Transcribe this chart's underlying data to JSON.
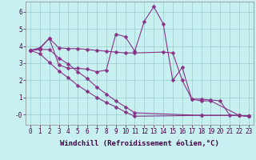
{
  "background_color": "#c8f0f0",
  "line_color": "#883388",
  "grid_color": "#99cccc",
  "line_width": 0.8,
  "marker": "D",
  "marker_size": 2.5,
  "xlabel": "Windchill (Refroidissement éolien,°C)",
  "xlabel_fontsize": 6.5,
  "tick_fontsize": 5.5,
  "ylim": [
    -0.6,
    6.6
  ],
  "xlim": [
    -0.5,
    23.5
  ],
  "yticks": [
    0,
    1,
    2,
    3,
    4,
    5,
    6
  ],
  "ytick_labels": [
    "-0",
    "1",
    "2",
    "3",
    "4",
    "5",
    "6"
  ],
  "xticks": [
    0,
    1,
    2,
    3,
    4,
    5,
    6,
    7,
    8,
    9,
    10,
    11,
    12,
    13,
    14,
    15,
    16,
    17,
    18,
    19,
    20,
    21,
    22,
    23
  ],
  "series": [
    {
      "x": [
        0,
        1,
        2,
        3,
        4,
        5,
        6,
        7,
        8,
        9,
        10,
        11,
        14,
        15,
        16,
        17,
        18,
        19,
        20,
        21,
        22,
        23
      ],
      "y": [
        3.75,
        3.9,
        4.45,
        3.9,
        3.85,
        3.85,
        3.8,
        3.75,
        3.7,
        3.65,
        3.6,
        3.6,
        3.65,
        3.6,
        2.0,
        0.9,
        0.9,
        0.85,
        0.8,
        -0.05,
        -0.05,
        -0.1
      ]
    },
    {
      "x": [
        0,
        1,
        2,
        3,
        4,
        5,
        6,
        7,
        8,
        9,
        10,
        11,
        12,
        13,
        14,
        15,
        16,
        17,
        18,
        19,
        22,
        23
      ],
      "y": [
        3.75,
        3.85,
        4.45,
        2.9,
        2.7,
        2.7,
        2.65,
        2.5,
        2.6,
        4.7,
        4.55,
        3.7,
        5.45,
        6.3,
        5.3,
        2.0,
        2.75,
        0.9,
        0.8,
        0.8,
        -0.05,
        -0.1
      ]
    },
    {
      "x": [
        0,
        1,
        2,
        3,
        4,
        5,
        6,
        7,
        8,
        9,
        10,
        11,
        18,
        22,
        23
      ],
      "y": [
        3.75,
        3.8,
        3.8,
        3.3,
        2.95,
        2.5,
        2.1,
        1.6,
        1.2,
        0.8,
        0.45,
        0.1,
        -0.05,
        -0.05,
        -0.1
      ]
    },
    {
      "x": [
        0,
        1,
        2,
        3,
        4,
        5,
        6,
        7,
        8,
        9,
        10,
        11,
        18,
        22,
        23
      ],
      "y": [
        3.75,
        3.55,
        3.05,
        2.55,
        2.15,
        1.7,
        1.35,
        1.0,
        0.7,
        0.45,
        0.15,
        -0.1,
        -0.05,
        -0.05,
        -0.1
      ]
    }
  ]
}
